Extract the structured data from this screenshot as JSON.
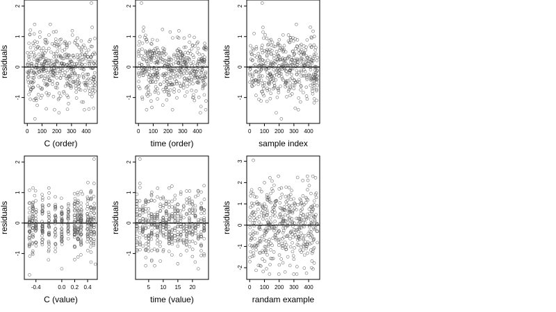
{
  "chart_data": [
    {
      "type": "scatter",
      "xlabel": "C (order)",
      "ylabel": "residuals",
      "xlim": [
        -20,
        475
      ],
      "ylim": [
        -1.85,
        2.2
      ],
      "x_ticks": [
        0,
        100,
        200,
        300,
        400
      ],
      "y_ticks": [
        -1,
        0,
        1,
        2
      ],
      "hline": 0,
      "n_points": 450,
      "x_kind": "index",
      "points": [
        [
          52,
          -1.7
        ],
        [
          435,
          2.1
        ],
        [
          440,
          1.3
        ],
        [
          178,
          1.15
        ],
        [
          215,
          -1.5
        ],
        [
          450,
          -1.35
        ],
        [
          340,
          0.95
        ],
        [
          120,
          0.9
        ],
        [
          280,
          -1.2
        ],
        [
          380,
          -1.15
        ]
      ]
    },
    {
      "type": "scatter",
      "xlabel": "time (order)",
      "ylabel": "residuals",
      "xlim": [
        -20,
        475
      ],
      "ylim": [
        -1.85,
        2.2
      ],
      "x_ticks": [
        0,
        100,
        200,
        300,
        400
      ],
      "y_ticks": [
        -1,
        0,
        1,
        2
      ],
      "hline": 0,
      "n_points": 450,
      "x_kind": "index",
      "points": [
        [
          20,
          2.1
        ],
        [
          35,
          1.3
        ],
        [
          215,
          1.15
        ],
        [
          55,
          -1.4
        ],
        [
          165,
          -1.25
        ],
        [
          420,
          -1.5
        ],
        [
          310,
          0.95
        ],
        [
          95,
          0.9
        ],
        [
          380,
          -1.1
        ]
      ]
    },
    {
      "type": "scatter",
      "xlabel": "sample index",
      "ylabel": "residuals",
      "xlim": [
        -20,
        475
      ],
      "ylim": [
        -1.85,
        2.2
      ],
      "x_ticks": [
        0,
        100,
        200,
        300,
        400
      ],
      "y_ticks": [
        -1,
        0,
        1,
        2
      ],
      "hline": 0,
      "n_points": 450,
      "x_kind": "index",
      "points": [
        [
          85,
          2.1
        ],
        [
          90,
          1.3
        ],
        [
          30,
          1.1
        ],
        [
          215,
          -1.7
        ],
        [
          180,
          -1.5
        ],
        [
          330,
          -1.4
        ],
        [
          420,
          0.95
        ],
        [
          280,
          0.9
        ],
        [
          390,
          -1.05
        ]
      ]
    },
    {
      "type": "scatter",
      "xlabel": "C (value)",
      "ylabel": "residuals",
      "xlim": [
        -0.58,
        0.55
      ],
      "ylim": [
        -1.85,
        2.2
      ],
      "x_ticks": [
        -0.4,
        0.0,
        0.2,
        0.4
      ],
      "y_ticks": [
        -1,
        0,
        1,
        2
      ],
      "hline": 0,
      "n_points": 450,
      "x_kind": "c_value",
      "points": [
        [
          0.5,
          2.1
        ],
        [
          0.5,
          1.3
        ],
        [
          -0.2,
          1.15
        ],
        [
          -0.5,
          -1.7
        ],
        [
          0.0,
          -1.5
        ],
        [
          0.52,
          -1.35
        ],
        [
          0.32,
          0.95
        ],
        [
          -0.42,
          0.9
        ],
        [
          0.2,
          -1.2
        ]
      ]
    },
    {
      "type": "scatter",
      "xlabel": "time (value)",
      "ylabel": "residuals",
      "xlim": [
        0.5,
        25.5
      ],
      "ylim": [
        -1.85,
        2.2
      ],
      "x_ticks": [
        5,
        10,
        15,
        20
      ],
      "y_ticks": [
        -1,
        0,
        1,
        2
      ],
      "hline": 0,
      "n_points": 450,
      "x_kind": "time_value",
      "points": [
        [
          2,
          2.1
        ],
        [
          2,
          1.3
        ],
        [
          12,
          1.15
        ],
        [
          4,
          -1.4
        ],
        [
          9,
          -1.25
        ],
        [
          22,
          -1.5
        ],
        [
          16,
          0.95
        ],
        [
          6,
          0.9
        ],
        [
          20,
          -1.1
        ]
      ]
    },
    {
      "type": "scatter",
      "xlabel": "randam example",
      "ylabel": "residuals",
      "xlim": [
        -20,
        475
      ],
      "ylim": [
        -2.55,
        3.25
      ],
      "x_ticks": [
        0,
        100,
        200,
        300,
        400
      ],
      "y_ticks": [
        -2,
        -1,
        0,
        1,
        2,
        3
      ],
      "hline": 0,
      "n_points": 450,
      "x_kind": "index",
      "points": [
        [
          25,
          3.05
        ],
        [
          195,
          2.3
        ],
        [
          360,
          2.1
        ],
        [
          240,
          -2.2
        ],
        [
          420,
          -2.0
        ],
        [
          70,
          -1.9
        ],
        [
          100,
          2.0
        ],
        [
          300,
          -1.6
        ],
        [
          150,
          1.7
        ]
      ]
    }
  ]
}
